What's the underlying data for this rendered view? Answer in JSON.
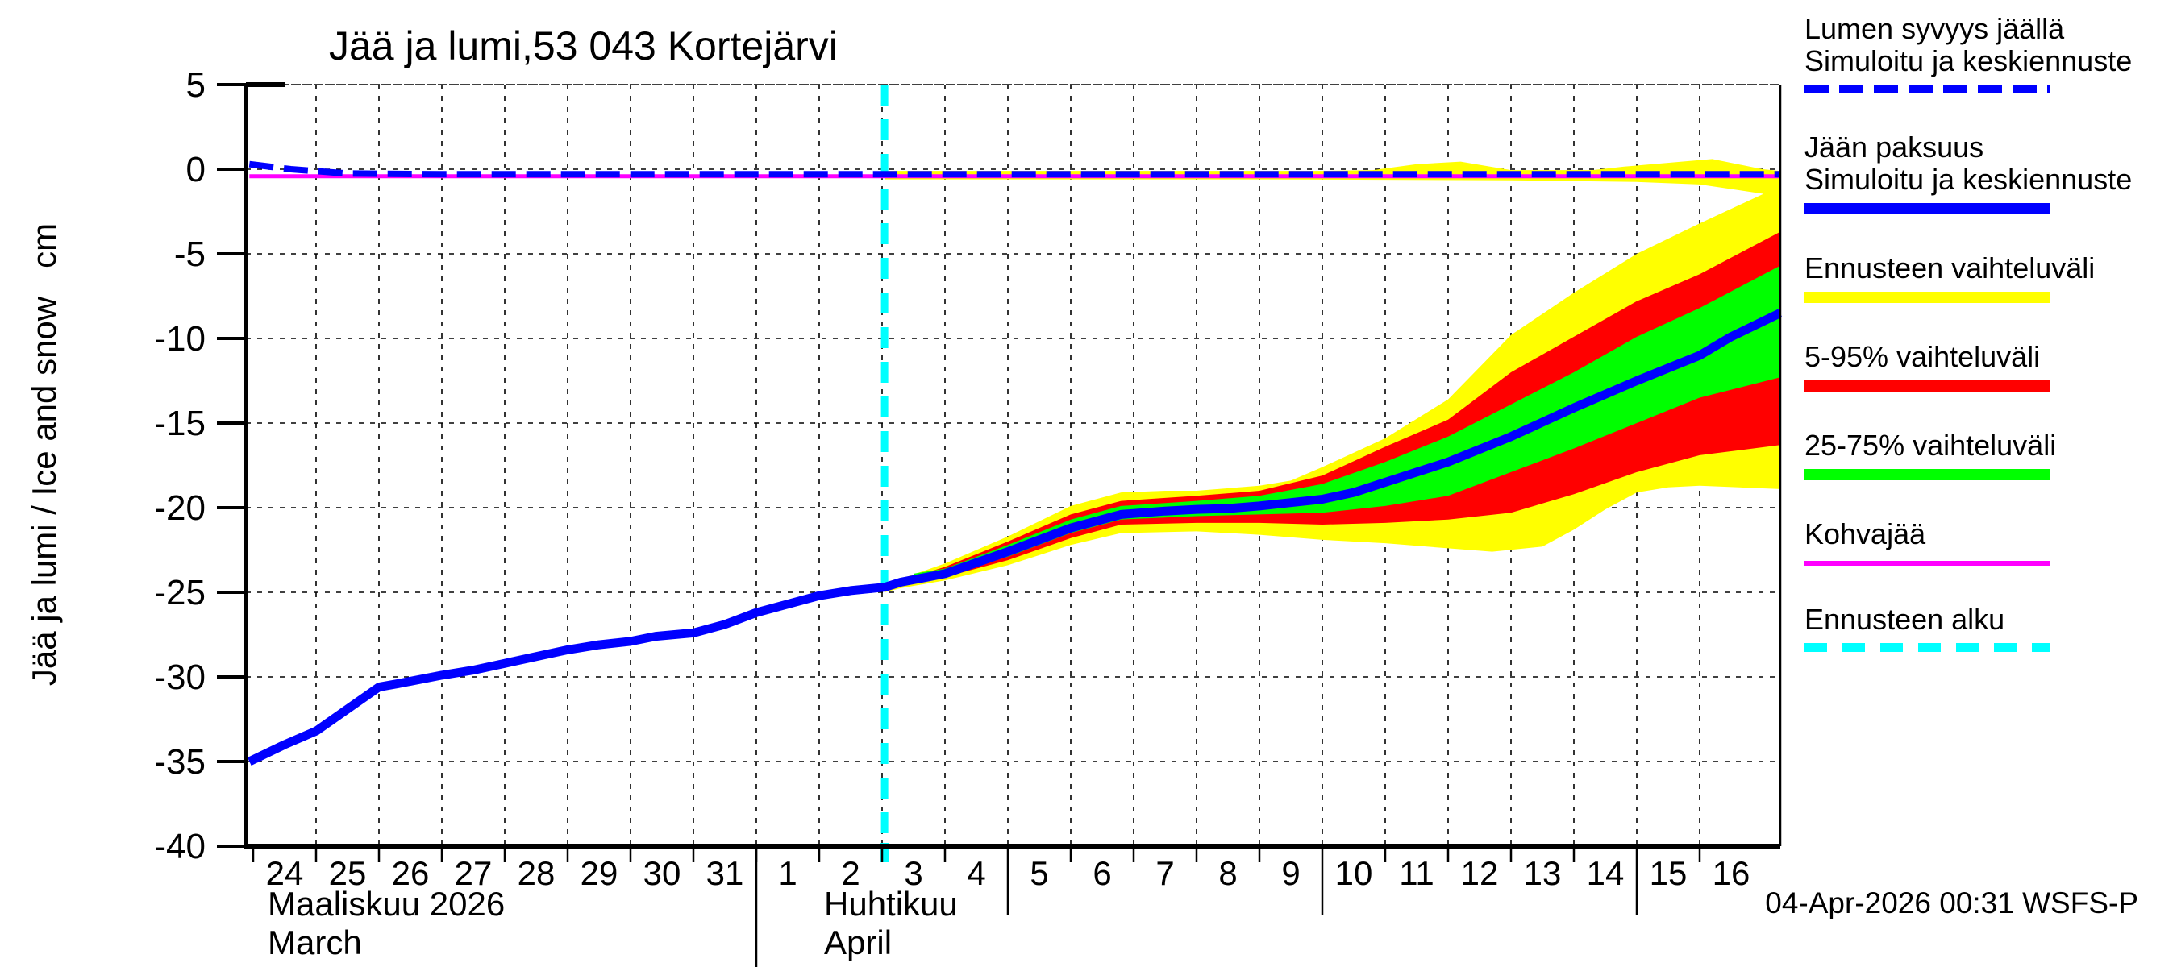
{
  "title": "Jää ja lumi,53 043 Kortejärvi",
  "timestamp": "04-Apr-2026 00:31 WSFS-P",
  "y_axis": {
    "label": "Jää ja lumi / Ice and snow   cm",
    "ticks": [
      5,
      0,
      -5,
      -10,
      -15,
      -20,
      -25,
      -30,
      -35,
      -40
    ]
  },
  "x_axis": {
    "day_labels": [
      "24",
      "25",
      "26",
      "27",
      "28",
      "29",
      "30",
      "31",
      "1",
      "2",
      "3",
      "4",
      "5",
      "6",
      "7",
      "8",
      "9",
      "10",
      "11",
      "12",
      "13",
      "14",
      "15",
      "16"
    ],
    "month_left_fi": "Maaliskuu 2026",
    "month_left_en": "March",
    "month_right_fi": "Huhtikuu",
    "month_right_en": "April"
  },
  "legend": {
    "items": [
      {
        "name": "snow-depth",
        "lines": [
          "Lumen syvyys jäällä",
          "Simuloitu ja keskiennuste"
        ],
        "swatch": "dashed-blue"
      },
      {
        "name": "ice-thickness",
        "lines": [
          "Jään paksuus",
          "Simuloitu ja keskiennuste"
        ],
        "swatch": "solid-blue"
      },
      {
        "name": "forecast-range",
        "lines": [
          "Ennusteen vaihteluväli"
        ],
        "swatch": "solid-yellow"
      },
      {
        "name": "range-5-95",
        "lines": [
          "5-95% vaihteluväli"
        ],
        "swatch": "solid-red"
      },
      {
        "name": "range-25-75",
        "lines": [
          "25-75% vaihteluväli"
        ],
        "swatch": "solid-green"
      },
      {
        "name": "kohvajaa",
        "lines": [
          "Kohvajää"
        ],
        "swatch": "solid-magenta"
      },
      {
        "name": "forecast-start",
        "lines": [
          "Ennusteen alku"
        ],
        "swatch": "dashed-cyan"
      }
    ]
  },
  "colors": {
    "blue": "#0000ff",
    "yellow": "#ffff00",
    "red": "#ff0000",
    "green": "#00ff00",
    "magenta": "#ff00ff",
    "cyan": "#00ffff",
    "black": "#000000"
  },
  "chart_data": {
    "type": "line",
    "title": "Jää ja lumi,53 043 Kortejärvi",
    "ylabel": "Jää ja lumi / Ice and snow (cm)",
    "ylim": [
      -40,
      5
    ],
    "x_unit": "days since 2026-03-24",
    "x_range": [
      0,
      24.28
    ],
    "grid": true,
    "legend_position": "right",
    "forecast_start_t": 10.04,
    "month_boundary_t": 8,
    "medium_tick_t": [
      12,
      17,
      22
    ],
    "bands": [
      {
        "name": "snow-forecast-range",
        "color": "yellow",
        "top": [
          [
            10.04,
            -0.1
          ],
          [
            17,
            -0.1
          ],
          [
            17.8,
            -0.05
          ],
          [
            18.5,
            0.3
          ],
          [
            19.2,
            0.45
          ],
          [
            20,
            -0.05
          ],
          [
            21.3,
            -0.05
          ],
          [
            21.8,
            0.15
          ],
          [
            23.2,
            0.6
          ],
          [
            24,
            0.0
          ],
          [
            24.28,
            -0.1
          ]
        ],
        "bottom": [
          [
            10.04,
            -0.6
          ],
          [
            16,
            -0.6
          ],
          [
            20,
            -0.65
          ],
          [
            22,
            -0.75
          ],
          [
            23,
            -0.9
          ],
          [
            24.28,
            -1.6
          ]
        ]
      },
      {
        "name": "ice-forecast-range",
        "color": "yellow",
        "top": [
          [
            10.04,
            -24.55
          ],
          [
            10.3,
            -24.2
          ],
          [
            11,
            -23.3
          ],
          [
            12,
            -21.7
          ],
          [
            13,
            -19.9
          ],
          [
            13.8,
            -19.1
          ],
          [
            14.5,
            -19.0
          ],
          [
            15,
            -19.0
          ],
          [
            16,
            -18.7
          ],
          [
            16.5,
            -18.4
          ],
          [
            17,
            -17.6
          ],
          [
            18,
            -15.9
          ],
          [
            19,
            -13.6
          ],
          [
            20,
            -9.8
          ],
          [
            21,
            -7.3
          ],
          [
            22,
            -5.0
          ],
          [
            23,
            -3.2
          ],
          [
            24.28,
            -1.0
          ]
        ],
        "bottom": [
          [
            10.04,
            -25.0
          ],
          [
            10.3,
            -24.75
          ],
          [
            11,
            -24.3
          ],
          [
            12,
            -23.4
          ],
          [
            13,
            -22.2
          ],
          [
            13.8,
            -21.5
          ],
          [
            15,
            -21.4
          ],
          [
            16,
            -21.6
          ],
          [
            17,
            -21.9
          ],
          [
            18,
            -22.1
          ],
          [
            19,
            -22.4
          ],
          [
            19.7,
            -22.6
          ],
          [
            20.5,
            -22.3
          ],
          [
            21,
            -21.3
          ],
          [
            21.5,
            -20.1
          ],
          [
            22,
            -19.1
          ],
          [
            22.5,
            -18.8
          ],
          [
            23,
            -18.7
          ],
          [
            24.28,
            -18.9
          ]
        ]
      },
      {
        "name": "ice-range-5-95",
        "color": "red",
        "top": [
          [
            10.04,
            -24.6
          ],
          [
            10.3,
            -24.3
          ],
          [
            11,
            -23.5
          ],
          [
            12,
            -22.0
          ],
          [
            13,
            -20.4
          ],
          [
            13.8,
            -19.6
          ],
          [
            15,
            -19.3
          ],
          [
            16,
            -19.0
          ],
          [
            17,
            -18.1
          ],
          [
            18,
            -16.4
          ],
          [
            19,
            -14.8
          ],
          [
            20,
            -12.0
          ],
          [
            21,
            -9.9
          ],
          [
            22,
            -7.8
          ],
          [
            23,
            -6.2
          ],
          [
            24.28,
            -3.7
          ]
        ],
        "bottom": [
          [
            10.04,
            -24.95
          ],
          [
            10.3,
            -24.6
          ],
          [
            11,
            -24.1
          ],
          [
            12,
            -23.1
          ],
          [
            13,
            -21.8
          ],
          [
            13.8,
            -21.0
          ],
          [
            15,
            -20.9
          ],
          [
            16,
            -20.9
          ],
          [
            17,
            -21.0
          ],
          [
            18,
            -20.9
          ],
          [
            19,
            -20.7
          ],
          [
            20,
            -20.3
          ],
          [
            21,
            -19.2
          ],
          [
            22,
            -17.9
          ],
          [
            23,
            -16.9
          ],
          [
            24.28,
            -16.3
          ]
        ]
      },
      {
        "name": "ice-range-25-75",
        "color": "green",
        "top": [
          [
            10.5,
            -23.9
          ],
          [
            11,
            -23.6
          ],
          [
            12,
            -22.2
          ],
          [
            13,
            -20.7
          ],
          [
            13.8,
            -19.9
          ],
          [
            15,
            -19.6
          ],
          [
            16,
            -19.3
          ],
          [
            17,
            -18.6
          ],
          [
            18,
            -17.3
          ],
          [
            19,
            -15.8
          ],
          [
            20,
            -13.9
          ],
          [
            21,
            -12.0
          ],
          [
            22,
            -9.9
          ],
          [
            23,
            -8.2
          ],
          [
            24.28,
            -5.7
          ]
        ],
        "bottom": [
          [
            10.5,
            -24.15
          ],
          [
            11,
            -24.0
          ],
          [
            12,
            -22.9
          ],
          [
            13,
            -21.5
          ],
          [
            13.8,
            -20.7
          ],
          [
            15,
            -20.5
          ],
          [
            16,
            -20.4
          ],
          [
            17,
            -20.3
          ],
          [
            18,
            -19.9
          ],
          [
            19,
            -19.3
          ],
          [
            20,
            -17.9
          ],
          [
            21,
            -16.5
          ],
          [
            22,
            -15.0
          ],
          [
            23,
            -13.5
          ],
          [
            24.28,
            -12.3
          ]
        ]
      }
    ],
    "series": [
      {
        "name": "ice-thickness-simulated",
        "color": "blue",
        "style": "solid",
        "width": 11,
        "points": [
          [
            -0.06,
            -35.0
          ],
          [
            0.5,
            -34.0
          ],
          [
            1,
            -33.2
          ],
          [
            1.5,
            -31.9
          ],
          [
            2,
            -30.6
          ],
          [
            2.3,
            -30.4
          ],
          [
            3,
            -29.9
          ],
          [
            3.5,
            -29.6
          ],
          [
            4,
            -29.2
          ],
          [
            4.5,
            -28.8
          ],
          [
            5,
            -28.4
          ],
          [
            5.5,
            -28.1
          ],
          [
            6,
            -27.9
          ],
          [
            6.4,
            -27.6
          ],
          [
            7,
            -27.4
          ],
          [
            7.5,
            -26.9
          ],
          [
            8,
            -26.2
          ],
          [
            8.5,
            -25.7
          ],
          [
            9,
            -25.2
          ],
          [
            9.5,
            -24.9
          ],
          [
            10.04,
            -24.7
          ],
          [
            10.3,
            -24.4
          ],
          [
            11,
            -23.9
          ],
          [
            12,
            -22.6
          ],
          [
            13,
            -21.2
          ],
          [
            13.8,
            -20.4
          ],
          [
            14.5,
            -20.2
          ],
          [
            15,
            -20.1
          ],
          [
            15.5,
            -20.05
          ],
          [
            16,
            -19.9
          ],
          [
            16.5,
            -19.7
          ],
          [
            17,
            -19.5
          ],
          [
            17.5,
            -19.1
          ],
          [
            18,
            -18.5
          ],
          [
            18.5,
            -17.9
          ],
          [
            19,
            -17.3
          ],
          [
            20,
            -15.8
          ],
          [
            21,
            -14.1
          ],
          [
            22,
            -12.5
          ],
          [
            23,
            -11.0
          ],
          [
            23.5,
            -9.9
          ],
          [
            24.28,
            -8.5
          ]
        ]
      },
      {
        "name": "kohvajaa-line",
        "color": "magenta",
        "style": "solid",
        "width": 5,
        "points": [
          [
            -0.06,
            -0.42
          ],
          [
            24.28,
            -0.42
          ]
        ]
      },
      {
        "name": "snow-depth-simulated",
        "color": "blue",
        "style": "dashed",
        "width": 8,
        "points": [
          [
            -0.06,
            0.3
          ],
          [
            0.6,
            0.0
          ],
          [
            1.5,
            -0.25
          ],
          [
            3,
            -0.3
          ],
          [
            24.28,
            -0.3
          ]
        ]
      }
    ],
    "vline": {
      "name": "forecast-start-line",
      "t": 10.04,
      "color": "cyan",
      "style": "dashed"
    }
  }
}
